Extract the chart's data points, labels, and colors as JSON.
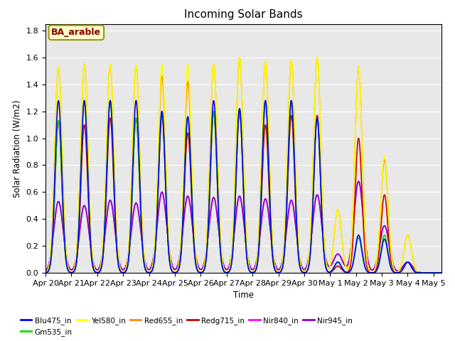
{
  "title": "Incoming Solar Bands",
  "xlabel": "Time",
  "ylabel": "Solar Radiation (W/m2)",
  "annotation": "BA_arable",
  "ylim": [
    0,
    1.85
  ],
  "yticks": [
    0.0,
    0.2,
    0.4,
    0.6,
    0.8,
    1.0,
    1.2,
    1.4,
    1.6,
    1.8
  ],
  "xtick_labels": [
    "Apr 20",
    "Apr 21",
    "Apr 22",
    "Apr 23",
    "Apr 24",
    "Apr 25",
    "Apr 26",
    "Apr 27",
    "Apr 28",
    "Apr 29",
    "Apr 30",
    "May 1",
    "May 2",
    "May 3",
    "May 4",
    "May 5"
  ],
  "series": [
    {
      "label": "Blu475_in",
      "color": "#0000ff",
      "lw": 1.2,
      "sigma": 0.13
    },
    {
      "label": "Gm535_in",
      "color": "#00dd00",
      "lw": 1.2,
      "sigma": 0.13
    },
    {
      "label": "Yel580_in",
      "color": "#ffff00",
      "lw": 1.2,
      "sigma": 0.14
    },
    {
      "label": "Red655_in",
      "color": "#ff8800",
      "lw": 1.2,
      "sigma": 0.14
    },
    {
      "label": "Redg715_in",
      "color": "#cc0000",
      "lw": 1.2,
      "sigma": 0.13
    },
    {
      "label": "Nir840_in",
      "color": "#ff00ff",
      "lw": 1.2,
      "sigma": 0.18
    },
    {
      "label": "Nir945_in",
      "color": "#8800cc",
      "lw": 1.2,
      "sigma": 0.18
    }
  ],
  "background_color": "#e8e8e8",
  "grid_color": "#ffffff",
  "num_days": 15.3,
  "day_peaks": [
    {
      "day": 0.5,
      "vals": [
        1.28,
        1.13,
        1.53,
        1.53,
        1.13,
        0.53,
        0.53
      ]
    },
    {
      "day": 1.5,
      "vals": [
        1.28,
        1.28,
        1.55,
        1.55,
        1.1,
        0.5,
        0.5
      ]
    },
    {
      "day": 2.5,
      "vals": [
        1.28,
        1.28,
        1.55,
        1.55,
        1.15,
        0.54,
        0.54
      ]
    },
    {
      "day": 3.5,
      "vals": [
        1.28,
        1.15,
        1.54,
        1.54,
        1.15,
        0.52,
        0.52
      ]
    },
    {
      "day": 4.5,
      "vals": [
        1.2,
        1.2,
        1.55,
        1.46,
        1.17,
        0.6,
        0.6
      ]
    },
    {
      "day": 5.5,
      "vals": [
        1.16,
        1.16,
        1.55,
        1.42,
        1.04,
        0.57,
        0.57
      ]
    },
    {
      "day": 6.5,
      "vals": [
        1.28,
        1.2,
        1.55,
        1.55,
        1.19,
        0.56,
        0.56
      ]
    },
    {
      "day": 7.5,
      "vals": [
        1.22,
        1.22,
        1.6,
        1.6,
        1.2,
        0.57,
        0.57
      ]
    },
    {
      "day": 8.5,
      "vals": [
        1.28,
        1.28,
        1.57,
        1.57,
        1.1,
        0.55,
        0.55
      ]
    },
    {
      "day": 9.5,
      "vals": [
        1.28,
        1.28,
        1.58,
        1.58,
        1.17,
        0.54,
        0.54
      ]
    },
    {
      "day": 10.5,
      "vals": [
        1.15,
        1.15,
        1.6,
        1.6,
        1.17,
        0.58,
        0.58
      ]
    },
    {
      "day": 11.3,
      "vals": [
        0.08,
        0.08,
        0.47,
        0.47,
        0.05,
        0.14,
        0.14
      ]
    },
    {
      "day": 12.1,
      "vals": [
        0.28,
        0.26,
        1.53,
        1.53,
        1.0,
        0.68,
        0.68
      ]
    },
    {
      "day": 13.1,
      "vals": [
        0.25,
        0.28,
        0.87,
        0.84,
        0.58,
        0.35,
        0.35
      ]
    },
    {
      "day": 14.0,
      "vals": [
        0.08,
        0.08,
        0.28,
        0.28,
        0.08,
        0.08,
        0.08
      ]
    }
  ],
  "legend_order": [
    "Blu475_in",
    "Gm535_in",
    "Yel580_in",
    "Red655_in",
    "Redg715_in",
    "Nir840_in",
    "Nir945_in"
  ]
}
